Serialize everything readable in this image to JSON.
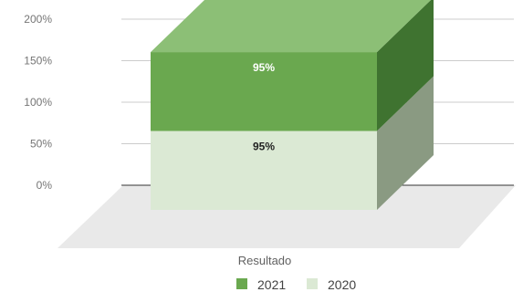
{
  "chart_data": {
    "type": "bar",
    "stacked": true,
    "three_d": true,
    "categories": [
      "Resultado"
    ],
    "series": [
      {
        "name": "2020",
        "values": [
          95
        ],
        "data_labels": [
          "95%"
        ],
        "color": "#dbe9d4"
      },
      {
        "name": "2021",
        "values": [
          95
        ],
        "data_labels": [
          "95%"
        ],
        "color": "#6aa84f"
      }
    ],
    "y_ticks": [
      "0%",
      "50%",
      "100%",
      "150%",
      "200%"
    ],
    "ylim": [
      0,
      200
    ],
    "grid": true,
    "legend_position": "bottom",
    "title": "",
    "xlabel": "",
    "ylabel": ""
  }
}
